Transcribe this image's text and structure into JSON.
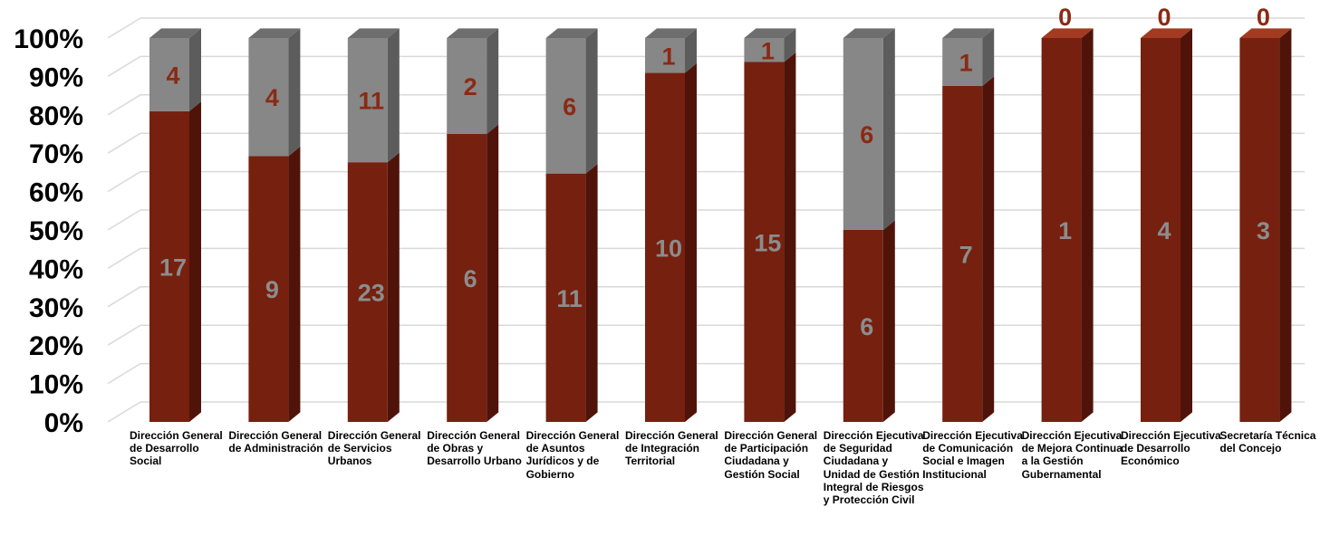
{
  "chart_data": {
    "type": "bar",
    "stacked": true,
    "percent_stacked": true,
    "three_d": true,
    "categories": [
      "Dirección General de Desarrollo Social",
      "Dirección General de Administración",
      "Dirección General de Servicios Urbanos",
      "Dirección General de Obras y Desarrollo Urbano",
      "Dirección General de Asuntos Jurídicos y de Gobierno",
      "Dirección General de Integración Territorial",
      "Dirección General de Participación Ciudadana y Gestión Social",
      "Dirección Ejecutiva de Seguridad Ciudadana y Unidad de Gestión Integral de Riesgos y Protección Civil",
      "Dirección Ejecutiva de Comunicación Social e Imagen Institucional",
      "Dirección Ejecutiva de Mejora Continua a la Gestión Gubernamental",
      "Dirección Ejecutiva de Desarrollo Económico",
      "Secretaría Técnica del Concejo"
    ],
    "series": [
      {
        "values": [
          17,
          9,
          23,
          6,
          11,
          10,
          15,
          6,
          7,
          1,
          4,
          3
        ],
        "color": "#76200f",
        "side_color": "#4f130a",
        "top_color": "#a33a22",
        "label_color": "#8c8c8c"
      },
      {
        "values": [
          4,
          4,
          11,
          2,
          6,
          1,
          1,
          6,
          1,
          0,
          0,
          0
        ],
        "color": "#878787",
        "side_color": "#5c5c5c",
        "top_color": "#6e6e6e",
        "label_color": "#8a2a14"
      }
    ],
    "yticks": [
      "0%",
      "10%",
      "20%",
      "30%",
      "40%",
      "50%",
      "60%",
      "70%",
      "80%",
      "90%",
      "100%"
    ],
    "ylim": [
      0,
      100
    ],
    "grid": true,
    "legend": "none"
  }
}
